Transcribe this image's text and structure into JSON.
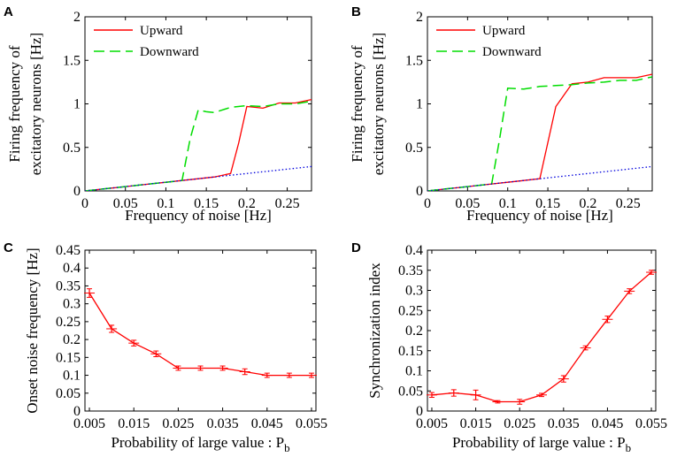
{
  "chart_data": [
    {
      "panel": "A",
      "type": "line",
      "xlabel": "Frequency of noise [Hz]",
      "ylabel": [
        "Firing frequency of",
        "excitatory neurons [Hz]"
      ],
      "xlim": [
        0,
        0.28
      ],
      "ylim": [
        0,
        2
      ],
      "xticks": [
        0,
        0.05,
        0.1,
        0.15,
        0.2,
        0.25
      ],
      "xtick_labels": [
        "0",
        "0.05",
        "0.1",
        "0.15",
        "0.2",
        "0.25"
      ],
      "yticks": [
        0,
        0.5,
        1,
        1.5,
        2
      ],
      "ytick_labels": [
        "0",
        "0.5",
        "1",
        "1.5",
        "2"
      ],
      "legend_position": "top-right",
      "series": [
        {
          "name": "Upward",
          "color": "#ff0000",
          "style": "solid",
          "x": [
            0,
            0.02,
            0.04,
            0.06,
            0.08,
            0.1,
            0.12,
            0.14,
            0.16,
            0.18,
            0.19,
            0.2,
            0.21,
            0.22,
            0.24,
            0.26,
            0.28
          ],
          "y": [
            0,
            0.02,
            0.04,
            0.06,
            0.08,
            0.1,
            0.12,
            0.14,
            0.16,
            0.2,
            0.55,
            0.97,
            0.96,
            0.95,
            1.01,
            1.01,
            1.05
          ]
        },
        {
          "name": "Downward",
          "color": "#00dd00",
          "style": "dashed",
          "x": [
            0,
            0.02,
            0.04,
            0.06,
            0.08,
            0.1,
            0.12,
            0.13,
            0.14,
            0.15,
            0.16,
            0.18,
            0.2,
            0.22,
            0.24,
            0.26,
            0.28
          ],
          "y": [
            0,
            0.02,
            0.04,
            0.06,
            0.08,
            0.1,
            0.12,
            0.6,
            0.93,
            0.91,
            0.9,
            0.96,
            0.98,
            0.97,
            1.0,
            1.0,
            1.03
          ]
        },
        {
          "name": "reference",
          "color": "#0000dd",
          "style": "dotted",
          "legend": false,
          "x": [
            0,
            0.28
          ],
          "y": [
            0,
            0.28
          ]
        }
      ]
    },
    {
      "panel": "B",
      "type": "line",
      "xlabel": "Frequency of noise [Hz]",
      "ylabel": [
        "Firing frequency of",
        "excitatory neurons [Hz]"
      ],
      "xlim": [
        0,
        0.28
      ],
      "ylim": [
        0,
        2
      ],
      "xticks": [
        0,
        0.05,
        0.1,
        0.15,
        0.2,
        0.25
      ],
      "xtick_labels": [
        "0",
        "0.05",
        "0.1",
        "0.15",
        "0.2",
        "0.25"
      ],
      "yticks": [
        0,
        0.5,
        1,
        1.5,
        2
      ],
      "ytick_labels": [
        "0",
        "0.5",
        "1",
        "1.5",
        "2"
      ],
      "legend_position": "top-right",
      "series": [
        {
          "name": "Upward",
          "color": "#ff0000",
          "style": "solid",
          "x": [
            0,
            0.02,
            0.04,
            0.06,
            0.08,
            0.1,
            0.12,
            0.14,
            0.16,
            0.18,
            0.2,
            0.22,
            0.24,
            0.26,
            0.28
          ],
          "y": [
            0,
            0.02,
            0.04,
            0.06,
            0.08,
            0.1,
            0.12,
            0.14,
            0.97,
            1.23,
            1.25,
            1.3,
            1.3,
            1.3,
            1.34
          ]
        },
        {
          "name": "Downward",
          "color": "#00dd00",
          "style": "dashed",
          "x": [
            0,
            0.02,
            0.04,
            0.06,
            0.08,
            0.09,
            0.1,
            0.12,
            0.14,
            0.16,
            0.18,
            0.2,
            0.22,
            0.24,
            0.26,
            0.28
          ],
          "y": [
            0,
            0.02,
            0.04,
            0.06,
            0.08,
            0.6,
            1.18,
            1.17,
            1.2,
            1.21,
            1.22,
            1.24,
            1.25,
            1.27,
            1.27,
            1.31
          ]
        },
        {
          "name": "reference",
          "color": "#0000dd",
          "style": "dotted",
          "legend": false,
          "x": [
            0,
            0.28
          ],
          "y": [
            0,
            0.28
          ]
        }
      ]
    },
    {
      "panel": "C",
      "type": "line",
      "xlabel": "Probability of large value : P",
      "xlabel_sub": "b",
      "ylabel": [
        "Onset noise frequency [Hz]"
      ],
      "xlim": [
        0.004,
        0.056
      ],
      "ylim": [
        0,
        0.45
      ],
      "xticks": [
        0.005,
        0.015,
        0.025,
        0.035,
        0.045,
        0.055
      ],
      "xtick_labels": [
        "0.005",
        "0.015",
        "0.025",
        "0.035",
        "0.045",
        "0.055"
      ],
      "yticks": [
        0,
        0.05,
        0.1,
        0.15,
        0.2,
        0.25,
        0.3,
        0.35,
        0.4,
        0.45
      ],
      "ytick_labels": [
        "0",
        "0.05",
        "0.1",
        "0.15",
        "0.2",
        "0.25",
        "0.3",
        "0.35",
        "0.4",
        "0.45"
      ],
      "series": [
        {
          "name": "Onset noise frequency",
          "color": "#ff0000",
          "style": "solid",
          "legend": false,
          "x": [
            0.005,
            0.01,
            0.015,
            0.02,
            0.025,
            0.03,
            0.035,
            0.04,
            0.045,
            0.05,
            0.055
          ],
          "y": [
            0.33,
            0.23,
            0.19,
            0.16,
            0.12,
            0.12,
            0.12,
            0.11,
            0.1,
            0.1,
            0.1
          ],
          "err": [
            0.012,
            0.01,
            0.008,
            0.008,
            0.006,
            0.006,
            0.006,
            0.008,
            0.006,
            0.006,
            0.006
          ]
        }
      ]
    },
    {
      "panel": "D",
      "type": "line",
      "xlabel": "Probability of large value : P",
      "xlabel_sub": "b",
      "ylabel": [
        "Synchronization index"
      ],
      "xlim": [
        0.004,
        0.056
      ],
      "ylim": [
        0,
        0.4
      ],
      "xticks": [
        0.005,
        0.015,
        0.025,
        0.035,
        0.045,
        0.055
      ],
      "xtick_labels": [
        "0.005",
        "0.015",
        "0.025",
        "0.035",
        "0.045",
        "0.055"
      ],
      "yticks": [
        0,
        0.05,
        0.1,
        0.15,
        0.2,
        0.25,
        0.3,
        0.35,
        0.4
      ],
      "ytick_labels": [
        "0",
        "0.05",
        "0.1",
        "0.15",
        "0.2",
        "0.25",
        "0.3",
        "0.35",
        "0.4"
      ],
      "series": [
        {
          "name": "Synchronization index",
          "color": "#ff0000",
          "style": "solid",
          "legend": false,
          "x": [
            0.005,
            0.01,
            0.015,
            0.02,
            0.025,
            0.03,
            0.035,
            0.04,
            0.045,
            0.05,
            0.055
          ],
          "y": [
            0.04,
            0.045,
            0.04,
            0.023,
            0.023,
            0.04,
            0.08,
            0.157,
            0.228,
            0.298,
            0.345
          ],
          "err": [
            0.006,
            0.008,
            0.012,
            0.003,
            0.006,
            0.004,
            0.008,
            0.005,
            0.008,
            0.006,
            0.005
          ]
        }
      ]
    }
  ]
}
